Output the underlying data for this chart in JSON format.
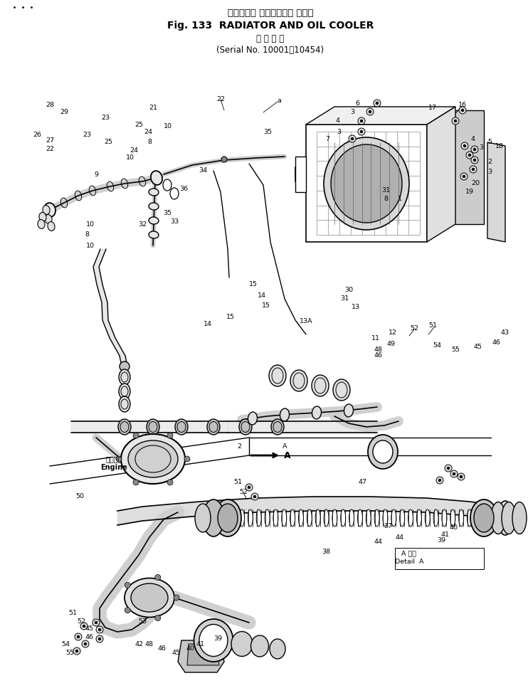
{
  "title_jp": "ラジエータ およびオイル クーラ",
  "title_en": "Fig. 133  RADIATOR AND OIL COOLER",
  "subtitle_jp": "適 用 号 機",
  "subtitle_serial": "(Serial No. 10001～10454)",
  "bg_color": "#ffffff",
  "fig_width": 7.42,
  "fig_height": 9.81,
  "dpi": 100
}
